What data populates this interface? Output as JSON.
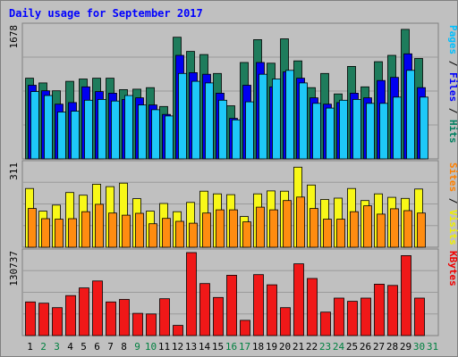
{
  "chart_data": {
    "type": "bar",
    "title": "Daily usage for September 2017",
    "days": [
      "1",
      "2",
      "3",
      "4",
      "5",
      "6",
      "7",
      "8",
      "9",
      "10",
      "11",
      "12",
      "13",
      "14",
      "15",
      "16",
      "17",
      "18",
      "19",
      "20",
      "21",
      "22",
      "23",
      "24",
      "25",
      "26",
      "27",
      "28",
      "29",
      "30",
      "31"
    ],
    "weekend_days": [
      "2",
      "3",
      "9",
      "10",
      "16",
      "17",
      "23",
      "24",
      "30",
      "31"
    ],
    "panels": [
      {
        "name": "pages-files-hits",
        "ymax_label": "1678",
        "ymax": 1678,
        "right_label_parts": [
          {
            "text": "Pages",
            "color": "#00c0ff"
          },
          {
            "text": " / ",
            "color": "#000000"
          },
          {
            "text": "Files",
            "color": "#0000ff"
          },
          {
            "text": " / ",
            "color": "#000000"
          },
          {
            "text": "Hits",
            "color": "#008060"
          }
        ],
        "series": [
          {
            "name": "Hits",
            "color": "#1e7c5c",
            "values": [
              1025,
              965,
              865,
              985,
              1015,
              1025,
              1025,
              880,
              885,
              905,
              665,
              1545,
              1365,
              1325,
              1085,
              675,
              1225,
              1515,
              1215,
              1525,
              1245,
              905,
              1085,
              825,
              1175,
              915,
              1235,
              1315,
              1645,
              1275,
              null
            ]
          },
          {
            "name": "Files",
            "color": "#0000f0",
            "values": [
              935,
              865,
              695,
              715,
              915,
              855,
              835,
              755,
              775,
              685,
              565,
              1315,
              1095,
              1075,
              835,
              515,
              935,
              1225,
              915,
              1105,
              1025,
              775,
              695,
              715,
              835,
              775,
              995,
              1035,
              1335,
              905,
              null
            ]
          },
          {
            "name": "Pages",
            "color": "#1ec8f8",
            "values": [
              855,
              805,
              595,
              605,
              745,
              755,
              735,
              805,
              685,
              625,
              545,
              1085,
              985,
              965,
              745,
              495,
              725,
              1075,
              1015,
              1125,
              965,
              705,
              645,
              745,
              755,
              705,
              705,
              785,
              1125,
              785,
              null
            ]
          }
        ]
      },
      {
        "name": "sites-visits",
        "ymax_label": "311",
        "ymax": 311,
        "right_label_parts": [
          {
            "text": "Sites",
            "color": "#ff8000"
          },
          {
            "text": " / ",
            "color": "#000000"
          },
          {
            "text": "Visits",
            "color": "#f0f000"
          }
        ],
        "series": [
          {
            "name": "Visits",
            "color": "#f8f818",
            "values": [
              220,
              135,
              158,
              205,
              195,
              236,
              227,
              240,
              182,
              135,
              164,
              133,
              168,
              210,
              200,
              197,
              115,
              200,
              211,
              210,
              300,
              233,
              179,
              184,
              220,
              175,
              200,
              187,
              183,
              218,
              null
            ]
          },
          {
            "name": "Sites",
            "color": "#ff8c10",
            "values": [
              145,
              107,
              105,
              107,
              133,
              161,
              128,
              120,
              127,
              88,
              108,
              97,
              90,
              128,
              140,
              140,
              95,
              150,
              140,
              175,
              188,
              145,
              105,
              105,
              133,
              155,
              124,
              144,
              137,
              128,
              null
            ]
          }
        ]
      },
      {
        "name": "kbytes",
        "ymax_label": "130737",
        "ymax": 130737,
        "right_label_parts": [
          {
            "text": "KBytes",
            "color": "#f00000"
          }
        ],
        "series": [
          {
            "name": "KBytes",
            "color": "#f01818",
            "values": [
              53000,
              51000,
              44000,
              63000,
              75000,
              86000,
              53000,
              57000,
              35000,
              34000,
              58000,
              16000,
              130737,
              82000,
              60000,
              95000,
              24000,
              96000,
              80000,
              44000,
              113000,
              90000,
              37000,
              59000,
              54000,
              59000,
              81000,
              79000,
              126000,
              59000,
              null
            ]
          }
        ]
      }
    ]
  }
}
